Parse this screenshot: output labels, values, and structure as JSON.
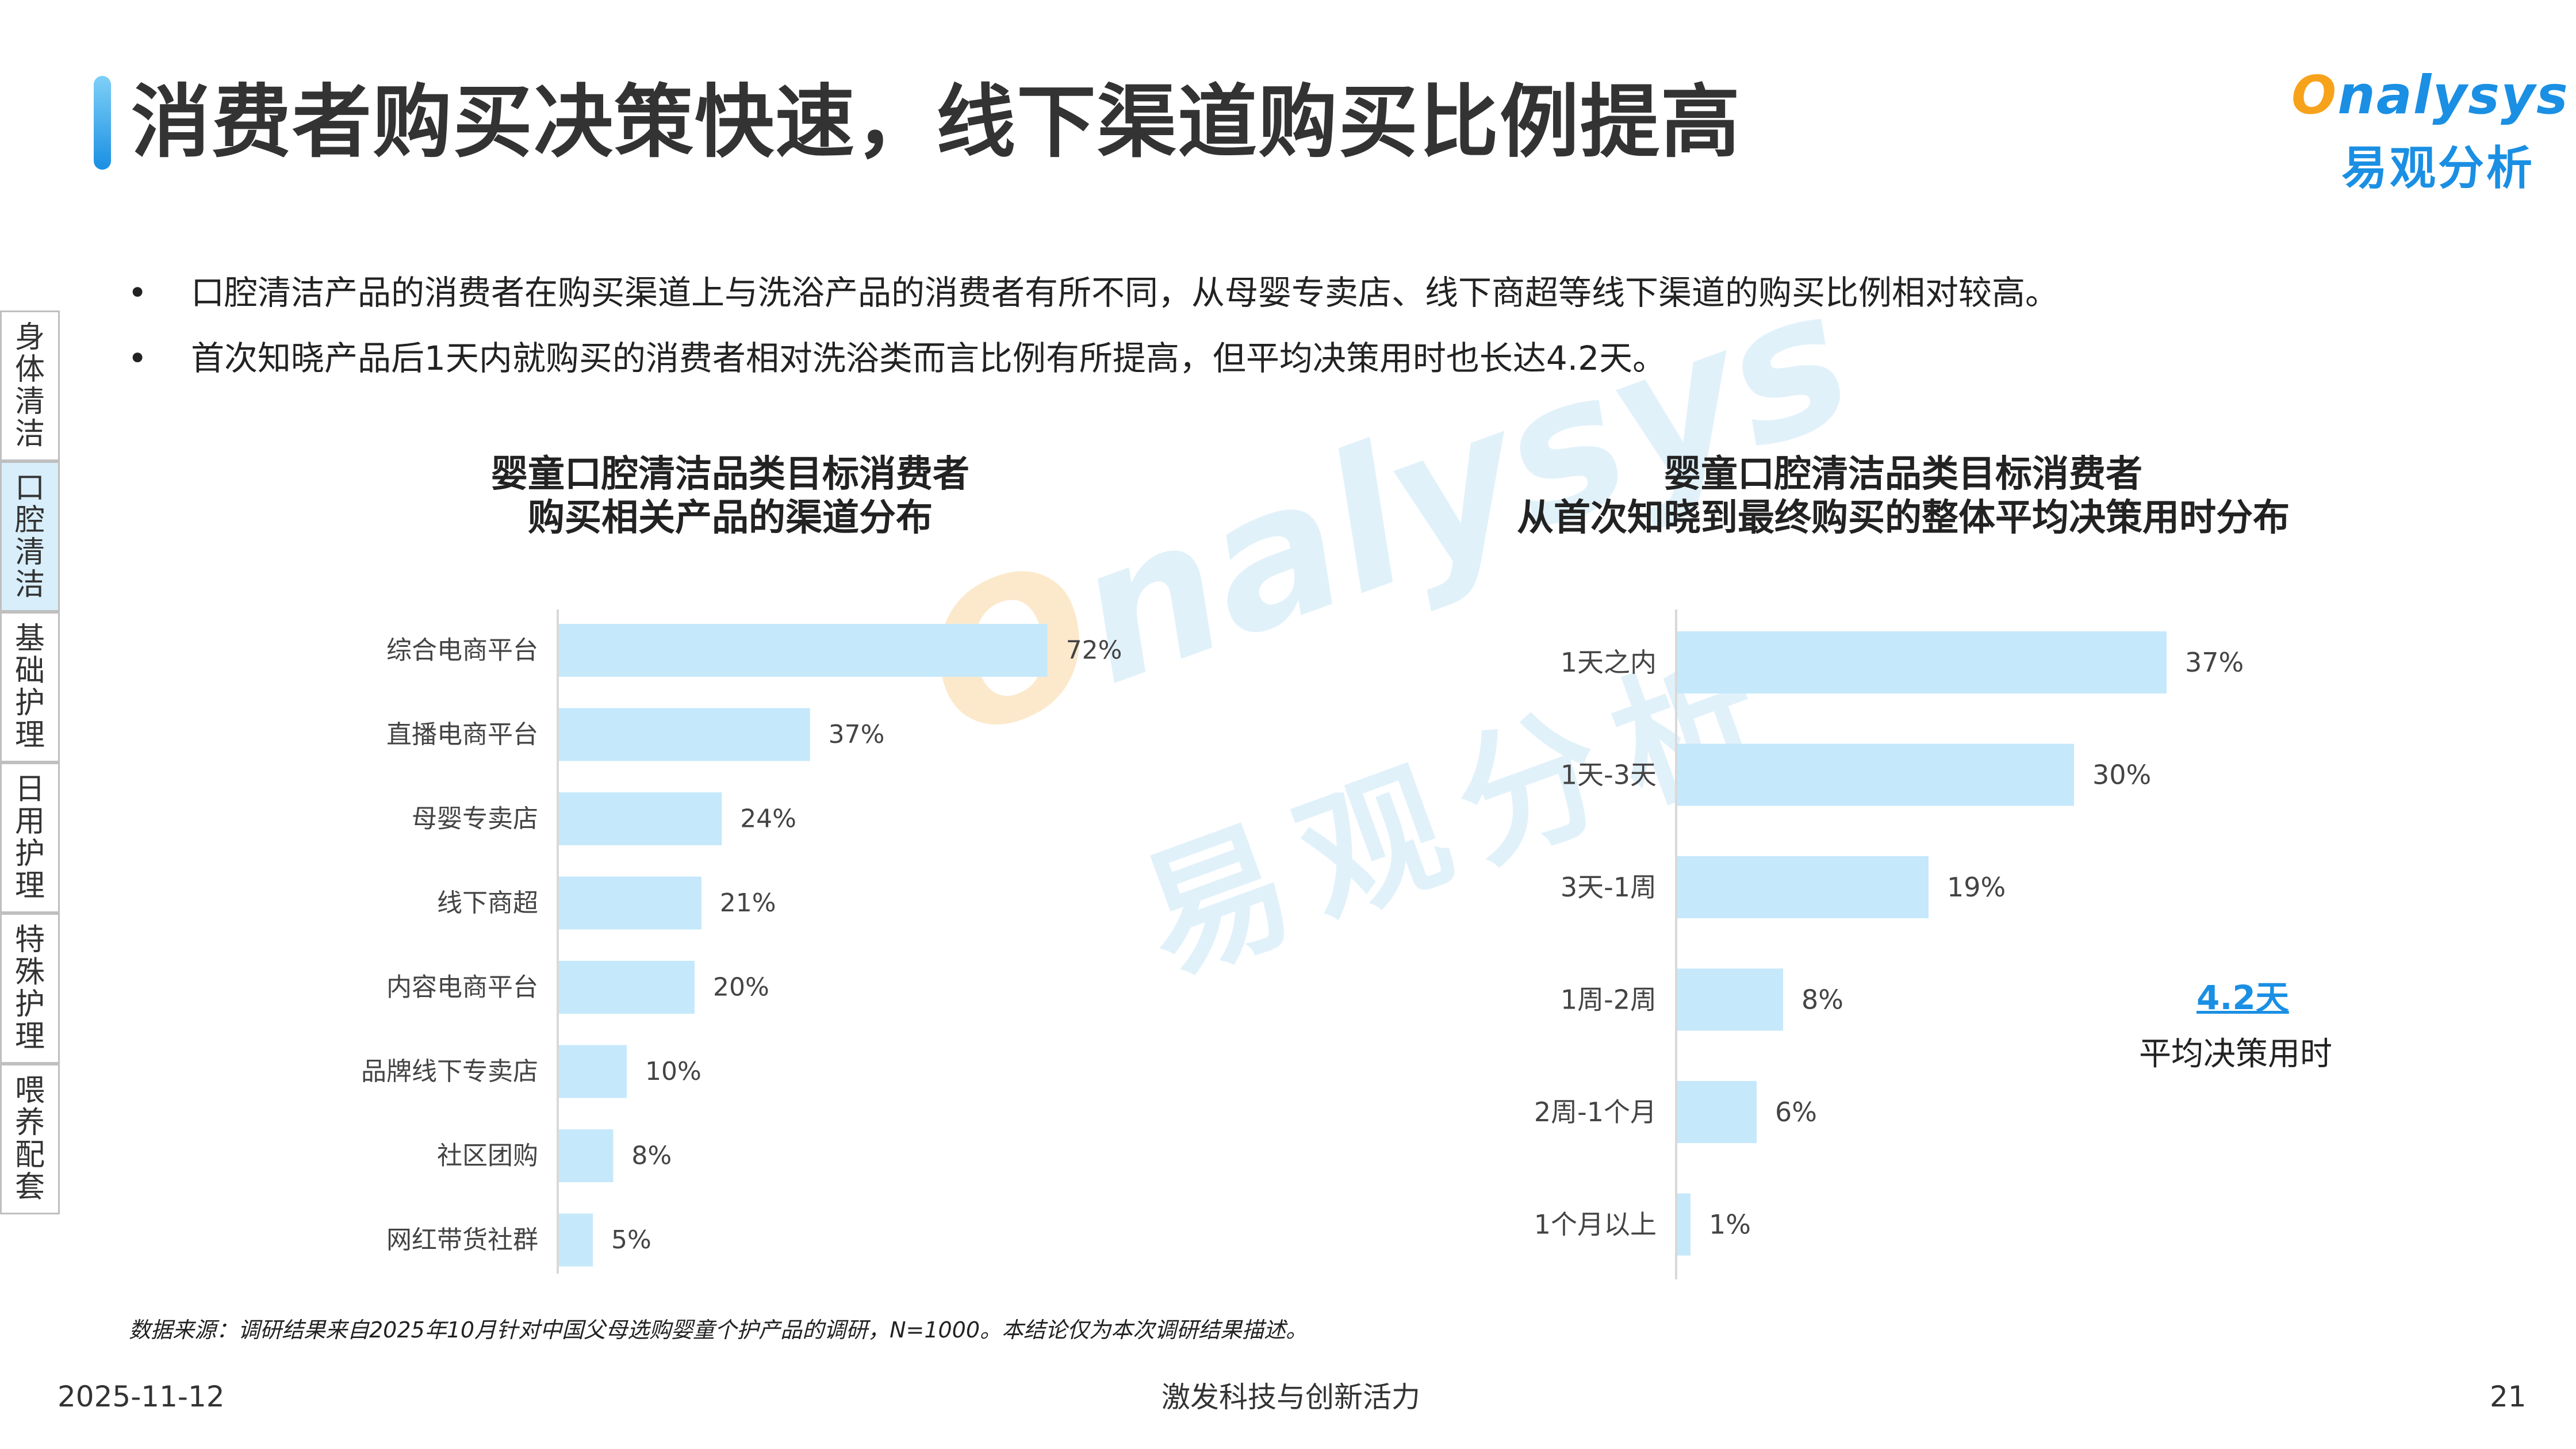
{
  "header": {
    "title": "消费者购买决策快速，线下渠道购买比例提高",
    "logo_en_o": "O",
    "logo_en_rest": "nalysys",
    "logo_cn": "易观分析"
  },
  "bullets": [
    "口腔清洁产品的消费者在购买渠道上与洗浴产品的消费者有所不同，从母婴专卖店、线下商超等线下渠道的购买比例相对较高。",
    "首次知晓产品后1天内就购买的消费者相对洗浴类而言比例有所提高，但平均决策用时也长达4.2天。"
  ],
  "bullet_symbol": "•",
  "side_nav": {
    "items": [
      {
        "label": "身体清洁",
        "active": false
      },
      {
        "label": "口腔清洁",
        "active": true
      },
      {
        "label": "基础护理",
        "active": false
      },
      {
        "label": "日用护理",
        "active": false
      },
      {
        "label": "特殊护理",
        "active": false
      },
      {
        "label": "喂养配套",
        "active": false
      }
    ]
  },
  "chart_data": [
    {
      "type": "bar",
      "orientation": "horizontal",
      "title": "婴童口腔清洁品类目标消费者",
      "subtitle": "购买相关产品的渠道分布",
      "categories": [
        "综合电商平台",
        "直播电商平台",
        "母婴专卖店",
        "线下商超",
        "内容电商平台",
        "品牌线下专卖店",
        "社区团购",
        "网红带货社群"
      ],
      "values": [
        72,
        37,
        24,
        21,
        20,
        10,
        8,
        5
      ],
      "value_labels": [
        "72%",
        "37%",
        "24%",
        "21%",
        "20%",
        "10%",
        "8%",
        "5%"
      ],
      "unit": "%",
      "xlim": [
        0,
        100
      ],
      "grid": false,
      "color": "#c5e8fb"
    },
    {
      "type": "bar",
      "orientation": "horizontal",
      "title": "婴童口腔清洁品类目标消费者",
      "subtitle": "从首次知晓到最终购买的整体平均决策用时分布",
      "categories": [
        "1天之内",
        "1天-3天",
        "3天-1周",
        "1周-2周",
        "2周-1个月",
        "1个月以上"
      ],
      "values": [
        37,
        30,
        19,
        8,
        6,
        1
      ],
      "value_labels": [
        "37%",
        "30%",
        "19%",
        "8%",
        "6%",
        "1%"
      ],
      "unit": "%",
      "xlim": [
        0,
        50
      ],
      "grid": false,
      "color": "#c5e8fb",
      "annotation": {
        "value": "4.2天",
        "label": "平均决策用时"
      }
    }
  ],
  "watermark": {
    "en_o": "O",
    "en_rest": "nalysys",
    "cn": "易观分析"
  },
  "footer": {
    "source": "数据来源：调研结果来自2025年10月针对中国父母选购婴童个护产品的调研，N=1000。本结论仅为本次调研结果描述。",
    "date": "2025-11-12",
    "slogan": "激发科技与创新活力",
    "page": "21"
  },
  "colors": {
    "accent": "#1a8fe3",
    "logo_orange": "#f7a21b",
    "bar": "#c5e8fb",
    "nav_active": "#d8eefb"
  }
}
